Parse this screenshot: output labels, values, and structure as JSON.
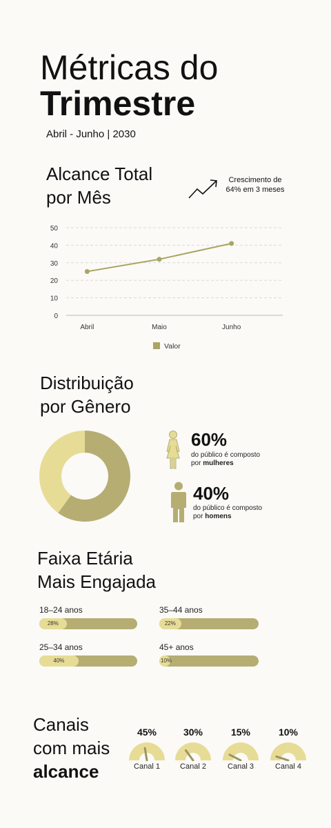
{
  "header": {
    "title_line1": "Métricas do",
    "title_line2": "Trimestre",
    "period": "Abril - Junho | 2030"
  },
  "reach": {
    "heading_line1": "Alcance Total",
    "heading_line2": "por Mês",
    "growth_line1": "Crescimento de",
    "growth_line2": "64% em 3 meses",
    "trend_icon": "trend-up-arrow-icon"
  },
  "chart_data": [
    {
      "type": "line",
      "categories": [
        "Abril",
        "Maio",
        "Junho"
      ],
      "series": [
        {
          "name": "Valor",
          "values": [
            25,
            32,
            41
          ]
        }
      ],
      "title": "",
      "xlabel": "",
      "ylabel": "",
      "ylim": [
        0,
        50
      ],
      "yticks": [
        "0",
        "10",
        "20",
        "30",
        "40",
        "50"
      ],
      "grid": true,
      "legend": "bottom",
      "color": "#a8a662"
    },
    {
      "type": "pie",
      "categories": [
        "mulheres",
        "homens"
      ],
      "values": [
        60,
        40
      ],
      "colors": [
        "#b5ad72",
        "#e7dc96"
      ],
      "donut": true
    }
  ],
  "gender": {
    "heading_line1": "Distribuição",
    "heading_line2": "por Gênero",
    "female_pct": "60%",
    "female_desc": "do público é composto",
    "female_prefix": "por",
    "female_word": "mulheres",
    "male_pct": "40%",
    "male_desc": "do público é composto",
    "male_prefix": "por",
    "male_word": "homens",
    "female_icon": "female-person-icon",
    "male_icon": "male-person-icon"
  },
  "age": {
    "heading_line1": "Faixa Etária",
    "heading_line2": "Mais Engajada",
    "groups": [
      {
        "label": "18–24 anos",
        "pct_text": "28%",
        "value": 28
      },
      {
        "label": "35–44 anos",
        "pct_text": "22%",
        "value": 22
      },
      {
        "label": "25–34 anos",
        "pct_text": "40%",
        "value": 40
      },
      {
        "label": "45+ anos",
        "pct_text": "10%",
        "value": 10
      }
    ]
  },
  "channels": {
    "heading_line1": "Canais",
    "heading_line2": "com mais",
    "heading_line3": "alcance",
    "items": [
      {
        "label": "Canal 1",
        "pct_text": "45%",
        "value": 45
      },
      {
        "label": "Canal 2",
        "pct_text": "30%",
        "value": 30
      },
      {
        "label": "Canal 3",
        "pct_text": "15%",
        "value": 15
      },
      {
        "label": "Canal 4",
        "pct_text": "10%",
        "value": 10
      }
    ]
  },
  "colors": {
    "olive": "#b5ad72",
    "light": "#e7dc96",
    "line": "#a8a662"
  }
}
